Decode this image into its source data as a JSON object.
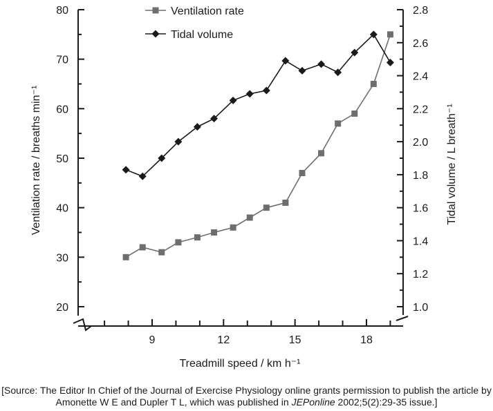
{
  "chart_data": {
    "type": "line",
    "xlabel": "Treadmill speed / km h⁻¹",
    "ylabel_left": "Ventilation rate  / breaths min⁻¹",
    "ylabel_right": "Tidal volume / L breath⁻¹",
    "x_ticks": [
      "9",
      "12",
      "15",
      "18"
    ],
    "xlim": [
      6.7,
      20
    ],
    "y_left_ticks": [
      "20",
      "30",
      "40",
      "50",
      "60",
      "70",
      "80"
    ],
    "ylim_left": [
      20,
      80
    ],
    "y_right_ticks": [
      "1.0",
      "1.2",
      "1.4",
      "1.6",
      "1.8",
      "2.0",
      "2.2",
      "2.4",
      "2.6",
      "2.8"
    ],
    "ylim_right": [
      1.0,
      2.8
    ],
    "axis_breaks": true,
    "grid": false,
    "legend_position": "top",
    "series": [
      {
        "name": "Ventilation rate",
        "axis": "left",
        "marker": "square",
        "color": "#6e6e6e",
        "x": [
          7.9,
          8.6,
          9.4,
          10.1,
          10.9,
          11.6,
          12.4,
          13.1,
          13.8,
          14.6,
          15.3,
          16.1,
          16.8,
          17.5,
          18.3,
          19.0
        ],
        "y": [
          30,
          32,
          31,
          33,
          34,
          35,
          36,
          38,
          40,
          41,
          47,
          51,
          57,
          59,
          65,
          75
        ]
      },
      {
        "name": "Tidal volume",
        "axis": "right",
        "marker": "diamond",
        "color": "#1a1a1a",
        "x": [
          7.9,
          8.6,
          9.4,
          10.1,
          10.9,
          11.6,
          12.4,
          13.1,
          13.8,
          14.6,
          15.3,
          16.1,
          16.8,
          17.5,
          18.3,
          19.0
        ],
        "y": [
          1.83,
          1.79,
          1.9,
          2.0,
          2.09,
          2.14,
          2.25,
          2.29,
          2.31,
          2.49,
          2.43,
          2.47,
          2.42,
          2.54,
          2.65,
          2.48
        ]
      }
    ]
  },
  "source": {
    "line1": "[Source: The Editor In Chief of the Journal of Exercise Physiology online grants permission to publish the article by",
    "line2_pre": "Amonette W E and Dupler T L, which was published in ",
    "line2_journal": "JEPonline",
    "line2_post": " 2002;5(2):29-35 issue.]"
  }
}
